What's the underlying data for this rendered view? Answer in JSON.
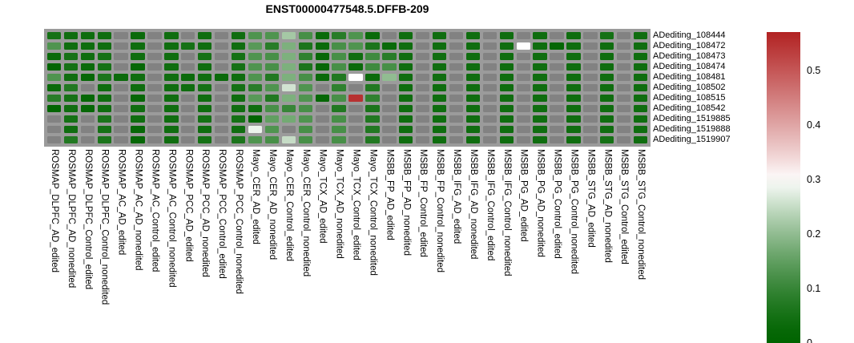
{
  "title": "ENST00000477548.5.DFFB-209",
  "chart_data": {
    "type": "heatmap",
    "title": "ENST00000477548.5.DFFB-209",
    "rows": [
      "ADediting_108444",
      "ADediting_108472",
      "ADediting_108473",
      "ADediting_108474",
      "ADediting_108481",
      "ADediting_108502",
      "ADediting_108515",
      "ADediting_108542",
      "ADediting_1519885",
      "ADediting_1519888",
      "ADediting_1519907"
    ],
    "columns": [
      "ROSMAP_DLPFC_AD_edited",
      "ROSMAP_DLPFC_AD_nonedited",
      "ROSMAP_DLPFC_Control_edited",
      "ROSMAP_DLPFC_Control_nonedited",
      "ROSMAP_AC_AD_edited",
      "ROSMAP_AC_AD_nonedited",
      "ROSMAP_AC_Control_edited",
      "ROSMAP_AC_Control_nonedited",
      "ROSMAP_PCC_AD_edited",
      "ROSMAP_PCC_AD_nonedited",
      "ROSMAP_PCC_Control_edited",
      "ROSMAP_PCC_Control_nonedited",
      "Mayo_CER_AD_edited",
      "Mayo_CER_AD_nonedited",
      "Mayo_CER_Control_edited",
      "Mayo_CER_Control_nonedited",
      "Mayo_TCX_AD_edited",
      "Mayo_TCX_AD_nonedited",
      "Mayo_TCX_Control_edited",
      "Mayo_TCX_Control_nonedited",
      "MSBB_FP_AD_edited",
      "MSBB_FP_AD_nonedited",
      "MSBB_FP_Control_edited",
      "MSBB_FP_Control_nonedited",
      "MSBB_IFG_AD_edited",
      "MSBB_IFG_AD_nonedited",
      "MSBB_IFG_Control_edited",
      "MSBB_IFG_Control_nonedited",
      "MSBB_PG_AD_edited",
      "MSBB_PG_AD_nonedited",
      "MSBB_PG_Control_edited",
      "MSBB_PG_Control_nonedited",
      "MSBB_STG_AD_edited",
      "MSBB_STG_AD_nonedited",
      "MSBB_STG_Control_edited",
      "MSBB_STG_Control_nonedited"
    ],
    "values": [
      [
        0.05,
        0.04,
        0.04,
        0.04,
        null,
        0.03,
        null,
        0.04,
        null,
        0.04,
        null,
        0.04,
        0.13,
        0.13,
        0.22,
        0.12,
        0.03,
        0.08,
        0.13,
        0.03,
        null,
        0.04,
        null,
        0.04,
        null,
        0.04,
        null,
        0.04,
        null,
        0.04,
        null,
        0.04,
        null,
        0.05,
        null,
        0.04
      ],
      [
        0.13,
        0.04,
        0.04,
        0.04,
        null,
        0.04,
        null,
        0.04,
        0.05,
        0.04,
        null,
        0.04,
        0.14,
        0.08,
        0.18,
        0.06,
        0.03,
        0.12,
        0.13,
        0.06,
        0.03,
        0.04,
        null,
        0.04,
        null,
        0.04,
        null,
        0.04,
        0.3,
        0.04,
        0.02,
        0.04,
        null,
        0.04,
        null,
        0.04
      ],
      [
        0.03,
        0.05,
        0.04,
        0.05,
        null,
        0.04,
        null,
        0.04,
        null,
        0.05,
        null,
        0.05,
        0.13,
        0.12,
        0.18,
        0.09,
        0.02,
        0.12,
        0.04,
        0.11,
        0.08,
        0.04,
        null,
        0.04,
        null,
        0.04,
        null,
        0.04,
        null,
        0.04,
        null,
        0.04,
        null,
        0.04,
        null,
        0.04
      ],
      [
        0.01,
        0.05,
        0.03,
        0.05,
        null,
        0.02,
        null,
        0.04,
        null,
        0.04,
        null,
        0.05,
        0.13,
        0.12,
        0.18,
        0.06,
        0.02,
        0.12,
        0.03,
        0.11,
        0.12,
        0.04,
        null,
        0.04,
        null,
        0.04,
        null,
        0.04,
        null,
        0.04,
        null,
        0.04,
        null,
        0.04,
        null,
        0.04
      ],
      [
        0.13,
        0.04,
        0.02,
        0.06,
        0.03,
        0.04,
        null,
        0.04,
        0.03,
        0.04,
        0.03,
        0.04,
        0.13,
        0.07,
        0.18,
        0.12,
        0.03,
        0.07,
        0.3,
        0.03,
        0.2,
        0.04,
        null,
        0.04,
        null,
        0.04,
        null,
        0.04,
        null,
        0.04,
        null,
        0.04,
        null,
        0.04,
        null,
        0.04
      ],
      [
        0.03,
        0.07,
        null,
        0.04,
        null,
        0.04,
        null,
        0.04,
        0.04,
        0.05,
        null,
        0.05,
        0.08,
        0.13,
        0.26,
        0.13,
        null,
        0.09,
        null,
        0.07,
        null,
        0.04,
        null,
        0.04,
        null,
        0.04,
        null,
        0.04,
        null,
        0.04,
        null,
        0.04,
        null,
        0.04,
        null,
        0.04
      ],
      [
        0.08,
        0.05,
        0.02,
        0.04,
        null,
        0.02,
        null,
        0.04,
        null,
        0.04,
        null,
        0.04,
        0.14,
        0.07,
        0.18,
        0.13,
        0.02,
        0.12,
        0.55,
        0.09,
        null,
        0.04,
        null,
        0.04,
        null,
        0.04,
        null,
        0.04,
        null,
        0.04,
        null,
        0.04,
        null,
        0.04,
        null,
        0.04
      ],
      [
        0.01,
        0.04,
        0.02,
        0.04,
        null,
        0.04,
        null,
        0.04,
        null,
        0.04,
        null,
        0.04,
        0.04,
        0.12,
        0.1,
        0.12,
        null,
        0.07,
        null,
        0.06,
        null,
        0.04,
        null,
        0.04,
        null,
        0.04,
        null,
        0.04,
        null,
        0.04,
        null,
        0.04,
        null,
        0.04,
        null,
        0.04
      ],
      [
        null,
        0.05,
        null,
        0.06,
        null,
        0.04,
        null,
        0.04,
        null,
        0.05,
        null,
        0.05,
        0.01,
        0.15,
        0.17,
        0.13,
        null,
        0.12,
        null,
        0.07,
        null,
        0.04,
        null,
        0.04,
        null,
        0.04,
        null,
        0.04,
        null,
        0.04,
        null,
        0.04,
        null,
        0.04,
        null,
        0.04
      ],
      [
        null,
        0.04,
        null,
        0.05,
        null,
        0.02,
        null,
        0.04,
        null,
        0.04,
        null,
        0.04,
        0.285,
        0.13,
        null,
        0.12,
        null,
        0.12,
        null,
        0.07,
        null,
        0.04,
        null,
        0.04,
        null,
        0.04,
        null,
        0.04,
        null,
        0.04,
        null,
        0.04,
        null,
        0.04,
        null,
        0.04
      ],
      [
        null,
        0.07,
        null,
        0.06,
        null,
        0.02,
        null,
        0.04,
        null,
        0.05,
        null,
        0.06,
        0.13,
        0.12,
        0.25,
        0.12,
        null,
        0.12,
        null,
        0.07,
        null,
        0.04,
        null,
        0.04,
        null,
        0.04,
        null,
        0.04,
        null,
        0.04,
        null,
        0.04,
        null,
        0.05,
        null,
        0.04
      ]
    ],
    "colorbar": {
      "ticks": [
        "0.5",
        "0.4",
        "0.3",
        "0.2",
        "0.1",
        "0"
      ],
      "tick_values": [
        0.5,
        0.4,
        0.3,
        0.2,
        0.1,
        0
      ],
      "min": 0,
      "max": 0.57,
      "white_point": 0.3,
      "color_low": "#006400",
      "color_mid": "#ffffff",
      "color_high": "#b22222",
      "na_color": "#828282",
      "grid_color": "#9b9b9b",
      "position": "right"
    },
    "legend_position": "right",
    "grid": true
  }
}
